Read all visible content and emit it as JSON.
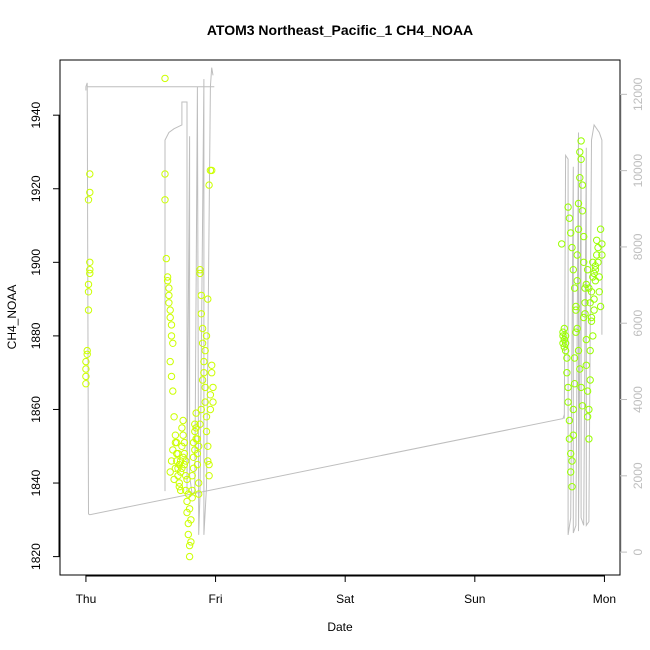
{
  "chart_data": {
    "type": "scatter",
    "title": "ATOM3 Northeast_Pacific_1 CH4_NOAA",
    "xlabel": "Date",
    "ylabel": "CH4_NOAA",
    "x_ticks": [
      "Thu",
      "Fri",
      "Sat",
      "Sun",
      "Mon"
    ],
    "x_tick_values": [
      0,
      1,
      2,
      3,
      4
    ],
    "xlim": [
      -0.2,
      4.12
    ],
    "ylim": [
      1815,
      1955
    ],
    "y_ticks": [
      1820,
      1840,
      1860,
      1880,
      1900,
      1920,
      1940
    ],
    "y2_ticks": [
      0,
      2000,
      4000,
      6000,
      8000,
      10000,
      12000
    ],
    "y2lim": [
      -600,
      12900
    ],
    "grid": false,
    "colors": {
      "points_early": "#ccff00",
      "points_late": "#99ff00",
      "altitude": "#bebebe",
      "axis": "#000000",
      "axis_right": "#bebebe"
    },
    "scatter_groups": [
      {
        "color": "#ccff00",
        "points": [
          [
            0.0,
            1867
          ],
          [
            0.0,
            1869
          ],
          [
            0.0,
            1871
          ],
          [
            0.0,
            1873
          ],
          [
            0.01,
            1875
          ],
          [
            0.01,
            1876
          ],
          [
            0.02,
            1887
          ],
          [
            0.02,
            1892
          ],
          [
            0.02,
            1894
          ],
          [
            0.03,
            1897
          ],
          [
            0.03,
            1898
          ],
          [
            0.03,
            1900
          ],
          [
            0.02,
            1917
          ],
          [
            0.03,
            1919
          ],
          [
            0.03,
            1924
          ],
          [
            0.61,
            1950
          ],
          [
            0.61,
            1924
          ],
          [
            0.61,
            1917
          ],
          [
            0.62,
            1901
          ],
          [
            0.63,
            1896
          ],
          [
            0.63,
            1895
          ],
          [
            0.64,
            1893
          ],
          [
            0.64,
            1891
          ],
          [
            0.64,
            1889
          ],
          [
            0.65,
            1887
          ],
          [
            0.65,
            1885
          ],
          [
            0.66,
            1883
          ],
          [
            0.66,
            1880
          ],
          [
            0.67,
            1878
          ],
          [
            0.65,
            1873
          ],
          [
            0.66,
            1869
          ],
          [
            0.67,
            1865
          ],
          [
            0.68,
            1858
          ],
          [
            0.69,
            1853
          ],
          [
            0.69,
            1851
          ],
          [
            0.7,
            1848
          ],
          [
            0.7,
            1846
          ],
          [
            0.71,
            1844
          ],
          [
            0.71,
            1842
          ],
          [
            0.72,
            1840
          ],
          [
            0.72,
            1839
          ],
          [
            0.73,
            1843
          ],
          [
            0.73,
            1846
          ],
          [
            0.74,
            1850
          ],
          [
            0.74,
            1855
          ],
          [
            0.75,
            1857
          ],
          [
            0.75,
            1853
          ],
          [
            0.76,
            1848
          ],
          [
            0.76,
            1845
          ],
          [
            0.77,
            1842
          ],
          [
            0.77,
            1838
          ],
          [
            0.78,
            1835
          ],
          [
            0.78,
            1832
          ],
          [
            0.79,
            1829
          ],
          [
            0.79,
            1826
          ],
          [
            0.8,
            1823
          ],
          [
            0.8,
            1820
          ],
          [
            0.81,
            1824
          ],
          [
            0.81,
            1830
          ],
          [
            0.82,
            1836
          ],
          [
            0.82,
            1842
          ],
          [
            0.83,
            1847
          ],
          [
            0.83,
            1851
          ],
          [
            0.84,
            1854
          ],
          [
            0.84,
            1856
          ],
          [
            0.85,
            1859
          ],
          [
            0.85,
            1852
          ],
          [
            0.86,
            1848
          ],
          [
            0.86,
            1845
          ],
          [
            0.87,
            1840
          ],
          [
            0.87,
            1837
          ],
          [
            0.88,
            1897
          ],
          [
            0.88,
            1898
          ],
          [
            0.89,
            1891
          ],
          [
            0.89,
            1886
          ],
          [
            0.9,
            1882
          ],
          [
            0.9,
            1878
          ],
          [
            0.91,
            1873
          ],
          [
            0.91,
            1870
          ],
          [
            0.92,
            1866
          ],
          [
            0.92,
            1862
          ],
          [
            0.93,
            1858
          ],
          [
            0.93,
            1854
          ],
          [
            0.94,
            1850
          ],
          [
            0.94,
            1846
          ],
          [
            0.95,
            1842
          ],
          [
            0.95,
            1845
          ],
          [
            0.96,
            1860
          ],
          [
            0.96,
            1864
          ],
          [
            0.97,
            1870
          ],
          [
            0.97,
            1872
          ],
          [
            0.98,
            1866
          ],
          [
            0.98,
            1862
          ],
          [
            0.95,
            1921
          ],
          [
            0.96,
            1925
          ],
          [
            0.97,
            1925
          ],
          [
            0.94,
            1890
          ],
          [
            0.93,
            1880
          ],
          [
            0.92,
            1876
          ],
          [
            0.9,
            1868
          ],
          [
            0.89,
            1860
          ],
          [
            0.88,
            1856
          ],
          [
            0.87,
            1850
          ],
          [
            0.86,
            1852
          ],
          [
            0.85,
            1855
          ],
          [
            0.84,
            1849
          ],
          [
            0.83,
            1844
          ],
          [
            0.82,
            1838
          ],
          [
            0.8,
            1833
          ],
          [
            0.79,
            1837
          ],
          [
            0.78,
            1841
          ],
          [
            0.77,
            1846
          ],
          [
            0.76,
            1851
          ],
          [
            0.75,
            1847
          ],
          [
            0.74,
            1844
          ],
          [
            0.73,
            1838
          ],
          [
            0.72,
            1845
          ],
          [
            0.71,
            1848
          ],
          [
            0.7,
            1851
          ],
          [
            0.69,
            1844
          ],
          [
            0.68,
            1841
          ],
          [
            0.67,
            1849
          ],
          [
            0.66,
            1846
          ],
          [
            0.65,
            1843
          ]
        ]
      },
      {
        "color": "#99ff00",
        "points": [
          [
            3.67,
            1905
          ],
          [
            3.68,
            1878
          ],
          [
            3.68,
            1880
          ],
          [
            3.68,
            1881
          ],
          [
            3.69,
            1877
          ],
          [
            3.69,
            1879
          ],
          [
            3.69,
            1882
          ],
          [
            3.7,
            1878
          ],
          [
            3.7,
            1880
          ],
          [
            3.7,
            1876
          ],
          [
            3.71,
            1874
          ],
          [
            3.71,
            1870
          ],
          [
            3.72,
            1866
          ],
          [
            3.72,
            1862
          ],
          [
            3.73,
            1857
          ],
          [
            3.73,
            1852
          ],
          [
            3.74,
            1848
          ],
          [
            3.74,
            1843
          ],
          [
            3.75,
            1839
          ],
          [
            3.75,
            1846
          ],
          [
            3.76,
            1853
          ],
          [
            3.76,
            1860
          ],
          [
            3.77,
            1867
          ],
          [
            3.77,
            1874
          ],
          [
            3.78,
            1881
          ],
          [
            3.78,
            1888
          ],
          [
            3.79,
            1895
          ],
          [
            3.79,
            1902
          ],
          [
            3.8,
            1909
          ],
          [
            3.8,
            1916
          ],
          [
            3.81,
            1923
          ],
          [
            3.81,
            1930
          ],
          [
            3.82,
            1933
          ],
          [
            3.82,
            1928
          ],
          [
            3.83,
            1921
          ],
          [
            3.83,
            1914
          ],
          [
            3.84,
            1907
          ],
          [
            3.84,
            1900
          ],
          [
            3.85,
            1893
          ],
          [
            3.85,
            1886
          ],
          [
            3.86,
            1879
          ],
          [
            3.86,
            1872
          ],
          [
            3.87,
            1865
          ],
          [
            3.87,
            1858
          ],
          [
            3.88,
            1852
          ],
          [
            3.88,
            1860
          ],
          [
            3.89,
            1868
          ],
          [
            3.89,
            1876
          ],
          [
            3.9,
            1884
          ],
          [
            3.9,
            1892
          ],
          [
            3.91,
            1900
          ],
          [
            3.91,
            1896
          ],
          [
            3.92,
            1890
          ],
          [
            3.92,
            1887
          ],
          [
            3.93,
            1895
          ],
          [
            3.93,
            1898
          ],
          [
            3.94,
            1902
          ],
          [
            3.94,
            1906
          ],
          [
            3.95,
            1904
          ],
          [
            3.95,
            1900
          ],
          [
            3.96,
            1896
          ],
          [
            3.96,
            1892
          ],
          [
            3.97,
            1888
          ],
          [
            3.97,
            1909
          ],
          [
            3.98,
            1905
          ],
          [
            3.98,
            1902
          ],
          [
            3.72,
            1915
          ],
          [
            3.73,
            1912
          ],
          [
            3.74,
            1908
          ],
          [
            3.75,
            1904
          ],
          [
            3.76,
            1898
          ],
          [
            3.77,
            1893
          ],
          [
            3.78,
            1887
          ],
          [
            3.79,
            1882
          ],
          [
            3.8,
            1876
          ],
          [
            3.81,
            1871
          ],
          [
            3.82,
            1866
          ],
          [
            3.83,
            1861
          ],
          [
            3.84,
            1885
          ],
          [
            3.85,
            1889
          ],
          [
            3.86,
            1894
          ],
          [
            3.87,
            1898
          ],
          [
            3.88,
            1893
          ],
          [
            3.89,
            1889
          ],
          [
            3.9,
            1885
          ],
          [
            3.91,
            1880
          ],
          [
            3.92,
            1897
          ],
          [
            3.93,
            1899
          ]
        ]
      }
    ],
    "altitude_segments": [
      [
        [
          0.0,
          12100
        ],
        [
          0.0,
          12200
        ],
        [
          0.01,
          12300
        ],
        [
          0.02,
          1000
        ],
        [
          0.03,
          980
        ],
        [
          3.68,
          3500
        ],
        [
          3.69,
          3600
        ]
      ],
      [
        [
          0.01,
          12200
        ],
        [
          0.99,
          12200
        ]
      ],
      [
        [
          0.61,
          1600
        ],
        [
          0.61,
          10800
        ],
        [
          0.64,
          11000
        ],
        [
          0.68,
          11100
        ],
        [
          0.74,
          11200
        ],
        [
          0.74,
          11800
        ],
        [
          0.78,
          11800
        ],
        [
          0.78,
          1600
        ],
        [
          0.8,
          10900
        ],
        [
          0.8,
          2000
        ],
        [
          0.82,
          1500
        ],
        [
          0.84,
          1600
        ],
        [
          0.86,
          12200
        ],
        [
          0.87,
          450
        ],
        [
          0.88,
          1500
        ],
        [
          0.91,
          12400
        ],
        [
          0.91,
          450
        ],
        [
          0.93,
          1700
        ],
        [
          0.96,
          12200
        ],
        [
          0.97,
          12700
        ],
        [
          0.98,
          12500
        ]
      ],
      [
        [
          3.69,
          3500
        ],
        [
          3.7,
          10400
        ],
        [
          3.72,
          10300
        ],
        [
          3.72,
          450
        ],
        [
          3.74,
          900
        ],
        [
          3.76,
          10100
        ],
        [
          3.76,
          500
        ],
        [
          3.78,
          700
        ],
        [
          3.8,
          11000
        ],
        [
          3.8,
          550
        ],
        [
          3.82,
          10400
        ],
        [
          3.82,
          900
        ],
        [
          3.84,
          700
        ],
        [
          3.86,
          10600
        ],
        [
          3.86,
          700
        ],
        [
          3.88,
          800
        ],
        [
          3.9,
          10800
        ],
        [
          3.92,
          11200
        ],
        [
          3.96,
          11000
        ],
        [
          3.98,
          10800
        ],
        [
          3.98,
          5700
        ]
      ]
    ]
  }
}
